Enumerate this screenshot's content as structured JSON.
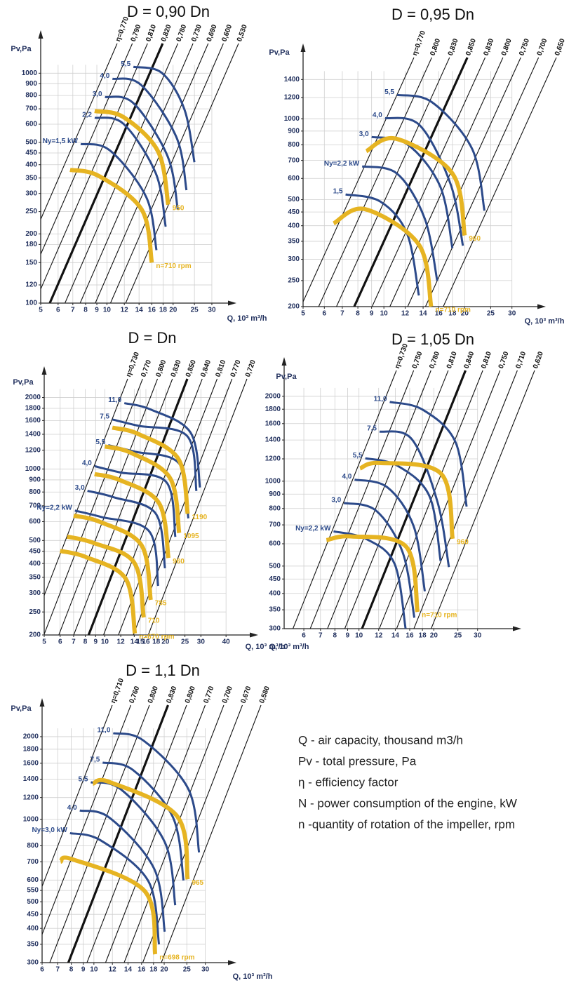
{
  "chart_data": [
    {
      "type": "line",
      "title": "D = 0,90 Dn",
      "y_label": "Pv,Pa",
      "x_label": "Q, 10³ m³/h",
      "xscale": "log",
      "yscale": "log",
      "grid": true,
      "xlim": [
        5,
        34
      ],
      "ylim": [
        100,
        1300
      ],
      "xticks": [
        5,
        6,
        7,
        8,
        9,
        10,
        12,
        14,
        16,
        18,
        20,
        25,
        30
      ],
      "yticks": [
        100,
        120,
        150,
        180,
        200,
        250,
        300,
        350,
        400,
        450,
        500,
        600,
        700,
        800,
        900,
        1000
      ],
      "efficiency_labels": [
        "η=0,770",
        "0,790",
        "0,810",
        "0,820",
        "0,780",
        "0,730",
        "0,690",
        "0,600",
        "0,530"
      ],
      "series": [
        {
          "name": "Ny=1,5 kW",
          "color": "#2c4a8a",
          "x": [
            7.6,
            10.3,
            15.1,
            16.8
          ],
          "values": [
            492,
            462,
            289,
            170
          ]
        },
        {
          "name": "2,2",
          "color": "#2c4a8a",
          "x": [
            8.8,
            11.9,
            16.7,
            18.5
          ],
          "values": [
            640,
            602,
            366,
            215
          ]
        },
        {
          "name": "3,0",
          "color": "#2c4a8a",
          "x": [
            9.8,
            13.2,
            18.9,
            21
          ],
          "values": [
            788,
            741,
            434,
            255
          ]
        },
        {
          "name": "4,0",
          "color": "#2c4a8a",
          "x": [
            10.6,
            14.3,
            20.7,
            23
          ],
          "values": [
            946,
            889,
            527,
            310
          ]
        },
        {
          "name": "5,5",
          "color": "#2c4a8a",
          "x": [
            13.2,
            17.8,
            22.5,
            25
          ],
          "values": [
            1066,
            1002,
            697,
            410
          ]
        },
        {
          "name": "n=710 rpm",
          "color": "#e6b422",
          "x": [
            6.8,
            9.2,
            14.4,
            16
          ],
          "values": [
            380,
            357,
            255,
            150
          ]
        },
        {
          "name": "950",
          "color": "#e6b422",
          "x": [
            8.8,
            11.9,
            17.1,
            19
          ],
          "values": [
            685,
            644,
            456,
            268
          ]
        }
      ]
    },
    {
      "type": "line",
      "title": "D = 0,95 Dn",
      "y_label": "Pv,Pa",
      "x_label": "Q, 10³ m³/h",
      "xscale": "log",
      "yscale": "log",
      "grid": true,
      "xlim": [
        5,
        36
      ],
      "ylim": [
        200,
        1650
      ],
      "xticks": [
        5,
        6,
        7,
        8,
        9,
        10,
        12,
        14,
        16,
        18,
        20,
        25,
        30
      ],
      "yticks": [
        200,
        250,
        300,
        350,
        400,
        450,
        500,
        600,
        700,
        800,
        900,
        1000,
        1200,
        1400
      ],
      "efficiency_labels": [
        "η=0,770",
        "0,800",
        "0,830",
        "0,850",
        "0,830",
        "0,800",
        "0,750",
        "0,700",
        "0,650"
      ],
      "series": [
        {
          "name": "1,5",
          "color": "#2c4a8a",
          "x": [
            7.2,
            9.7,
            12.2,
            13.5
          ],
          "values": [
            523,
            492,
            374,
            220
          ]
        },
        {
          "name": "Ny=2,2 kW",
          "color": "#2c4a8a",
          "x": [
            8.3,
            11.2,
            14.2,
            15.8
          ],
          "values": [
            665,
            625,
            425,
            250
          ]
        },
        {
          "name": "3,0",
          "color": "#2c4a8a",
          "x": [
            9,
            12.2,
            16.2,
            18
          ],
          "values": [
            856,
            805,
            561,
            330
          ]
        },
        {
          "name": "4,0",
          "color": "#2c4a8a",
          "x": [
            10.1,
            13.6,
            17.7,
            19.7
          ],
          "values": [
            1006,
            946,
            573,
            337
          ]
        },
        {
          "name": "5,5",
          "color": "#2c4a8a",
          "x": [
            11.2,
            15.1,
            21.3,
            23.7
          ],
          "values": [
            1227,
            1153,
            774,
            455
          ]
        },
        {
          "name": "n=710 rpm",
          "color": "#e6b422",
          "x": [
            6.5,
            8.5,
            13.5,
            15
          ],
          "values": [
            408,
            461,
            340,
            200
          ]
        },
        {
          "name": "960",
          "color": "#e6b422",
          "x": [
            8.6,
            11.1,
            18,
            20
          ],
          "values": [
            758,
            843,
            626,
            368
          ]
        }
      ]
    },
    {
      "type": "line",
      "title": "D = Dn",
      "y_label": "Pv,Pa",
      "x_label": "Q, 10³ m³/h",
      "xscale": "log",
      "yscale": "log",
      "grid": true,
      "xlim": [
        5,
        50
      ],
      "ylim": [
        200,
        2300
      ],
      "xticks": [
        5,
        6,
        7,
        8,
        9,
        10,
        12,
        14,
        15,
        16,
        18,
        20,
        25,
        30,
        40
      ],
      "yticks": [
        200,
        250,
        300,
        350,
        400,
        450,
        500,
        600,
        700,
        800,
        900,
        1000,
        1200,
        1400,
        1600,
        1800,
        2000
      ],
      "efficiency_labels": [
        "η=0,730",
        "0,770",
        "0,800",
        "0,830",
        "0,850",
        "0,840",
        "0,810",
        "0,770",
        "0,720"
      ],
      "series": [
        {
          "name": "Ny=2,2 kW",
          "color": "#2c4a8a",
          "x": [
            7.1,
            9.6,
            16.6,
            18.4
          ],
          "values": [
            668,
            628,
            547,
            322
          ]
        },
        {
          "name": "3,0",
          "color": "#2c4a8a",
          "x": [
            8.2,
            11.1,
            17.9,
            19.9
          ],
          "values": [
            809,
            760,
            649,
            382
          ]
        },
        {
          "name": "4,0",
          "color": "#2c4a8a",
          "x": [
            8.9,
            12,
            20.2,
            22.4
          ],
          "values": [
            1028,
            966,
            881,
            518
          ]
        },
        {
          "name": "5,5",
          "color": "#2c4a8a",
          "x": [
            10.4,
            14,
            23.4,
            26
          ],
          "values": [
            1260,
            1184,
            1054,
            620
          ]
        },
        {
          "name": "7,5",
          "color": "#2c4a8a",
          "x": [
            10.9,
            14.7,
            25.7,
            28.5
          ],
          "values": [
            1617,
            1520,
            1374,
            808
          ]
        },
        {
          "name": "11,0",
          "color": "#2c4a8a",
          "x": [
            12.5,
            16.9,
            26.7,
            29.7
          ],
          "values": [
            1894,
            1780,
            1421,
            836
          ]
        },
        {
          "name": "n=670 rpm",
          "color": "#e6b422",
          "x": [
            6,
            8.1,
            12.7,
            14.1
          ],
          "values": [
            452,
            425,
            345,
            203
          ]
        },
        {
          "name": "710",
          "color": "#e6b422",
          "x": [
            6.5,
            8.8,
            14,
            15.6
          ],
          "values": [
            519,
            488,
            403,
            237
          ]
        },
        {
          "name": "785",
          "color": "#e6b422",
          "x": [
            7,
            9.5,
            15.2,
            16.9
          ],
          "values": [
            636,
            598,
            478,
            281
          ]
        },
        {
          "name": "960",
          "color": "#e6b422",
          "x": [
            8.9,
            12,
            18.6,
            20.7
          ],
          "values": [
            952,
            895,
            717,
            422
          ]
        },
        {
          "name": "1095",
          "color": "#e6b422",
          "x": [
            10,
            13.5,
            21.1,
            23.4
          ],
          "values": [
            1244,
            1169,
            915,
            538
          ]
        },
        {
          "name": "1190",
          "color": "#e6b422",
          "x": [
            10.9,
            14.7,
            23.2,
            25.8
          ],
          "values": [
            1493,
            1403,
            1102,
            648
          ]
        }
      ]
    },
    {
      "type": "line",
      "title": "D = 1,05 Dn",
      "y_label": "Pv,Pa",
      "x_label": "Q, 10³ m³/h",
      "xscale": "log",
      "yscale": "log",
      "grid": true,
      "xlim": [
        5,
        40
      ],
      "ylim": [
        300,
        2400
      ],
      "xticks": [
        6,
        7,
        8,
        9,
        10,
        12,
        14,
        16,
        18,
        20,
        25,
        30
      ],
      "yticks": [
        300,
        350,
        400,
        450,
        500,
        600,
        700,
        800,
        900,
        1000,
        1200,
        1400,
        1600,
        1800,
        2000
      ],
      "efficiency_labels": [
        "η=0,730",
        "0,750",
        "0,780",
        "0,810",
        "0,840",
        "0,810",
        "0,750",
        "0,710",
        "0,620"
      ],
      "series": [
        {
          "name": "Ny=2,2 kW",
          "color": "#2c4a8a",
          "x": [
            7.9,
            10.7,
            13.9,
            15.4
          ],
          "values": [
            664,
            624,
            510,
            300
          ]
        },
        {
          "name": "3,0",
          "color": "#2c4a8a",
          "x": [
            8.7,
            11.7,
            15,
            16.7
          ],
          "values": [
            837,
            787,
            558,
            328
          ]
        },
        {
          "name": "4,0",
          "color": "#2c4a8a",
          "x": [
            9.6,
            13,
            16.6,
            18.4
          ],
          "values": [
            1013,
            952,
            692,
            407
          ]
        },
        {
          "name": "5,5",
          "color": "#2c4a8a",
          "x": [
            10.6,
            14.3,
            19.2,
            21.3
          ],
          "values": [
            1206,
            1134,
            886,
            521
          ]
        },
        {
          "name": "7,5",
          "color": "#2c4a8a",
          "x": [
            12.1,
            16.3,
            20.7,
            23
          ],
          "values": [
            1500,
            1410,
            843,
            496
          ]
        },
        {
          "name": "11,0",
          "color": "#2c4a8a",
          "x": [
            13.3,
            18,
            24.4,
            27.1
          ],
          "values": [
            1910,
            1795,
            1382,
            813
          ]
        },
        {
          "name": "n=710 rpm",
          "color": "#e6b422",
          "x": [
            7.4,
            9.3,
            15.5,
            17.2
          ],
          "values": [
            618,
            637,
            585,
            344
          ]
        },
        {
          "name": "960",
          "color": "#e6b422",
          "x": [
            10.1,
            12.1,
            21.4,
            23.8
          ],
          "values": [
            1110,
            1160,
            1063,
            625
          ]
        }
      ]
    },
    {
      "type": "line",
      "title": "D = 1,1 Dn",
      "y_label": "Pv,Pa",
      "x_label": "Q, 10³ m³/h",
      "xscale": "log",
      "yscale": "log",
      "grid": true,
      "xlim": [
        6,
        36
      ],
      "ylim": [
        300,
        2400
      ],
      "xticks": [
        6,
        7,
        8,
        9,
        10,
        12,
        14,
        16,
        18,
        20,
        25,
        30
      ],
      "yticks": [
        300,
        350,
        400,
        450,
        500,
        550,
        600,
        700,
        800,
        1000,
        1200,
        1400,
        1600,
        1800,
        2000
      ],
      "efficiency_labels": [
        "η=0,710",
        "0,760",
        "0,800",
        "0,830",
        "0,800",
        "0,770",
        "0,700",
        "0,670",
        "0,580"
      ],
      "series": [
        {
          "name": "Ny=3,0 kW",
          "color": "#2c4a8a",
          "x": [
            7.9,
            10.7,
            17.1,
            19
          ],
          "values": [
            890,
            837,
            595,
            350
          ]
        },
        {
          "name": "4,0",
          "color": "#2c4a8a",
          "x": [
            8.7,
            11.7,
            18.1,
            20.1
          ],
          "values": [
            1076,
            1011,
            661,
            389
          ]
        },
        {
          "name": "5,5",
          "color": "#2c4a8a",
          "x": [
            9.7,
            13.1,
            20.1,
            22.3
          ],
          "values": [
            1364,
            1282,
            826,
            486
          ]
        },
        {
          "name": "7,5",
          "color": "#2c4a8a",
          "x": [
            10.9,
            14.7,
            21.8,
            24.2
          ],
          "values": [
            1609,
            1512,
            1017,
            598
          ]
        },
        {
          "name": "11,0",
          "color": "#2c4a8a",
          "x": [
            12.1,
            16.3,
            25.4,
            28.2
          ],
          "values": [
            2060,
            1936,
            1287,
            757
          ]
        },
        {
          "name": "n=698 rpm",
          "color": "#e6b422",
          "x": [
            7.2,
            8.1,
            16.5,
            18.3
          ],
          "values": [
            700,
            714,
            547,
            322
          ]
        },
        {
          "name": "965",
          "color": "#e6b422",
          "x": [
            9.9,
            11.7,
            22.7,
            25.2
          ],
          "values": [
            1348,
            1365,
            1027,
            604
          ]
        }
      ]
    }
  ],
  "notes": [
    "Q - air capacity, thousand m3/h",
    "Pv - total pressure, Pa",
    "η - efficiency factor",
    "N - power consumption of the engine, kW",
    "n -quantity of rotation of the impeller, rpm"
  ]
}
